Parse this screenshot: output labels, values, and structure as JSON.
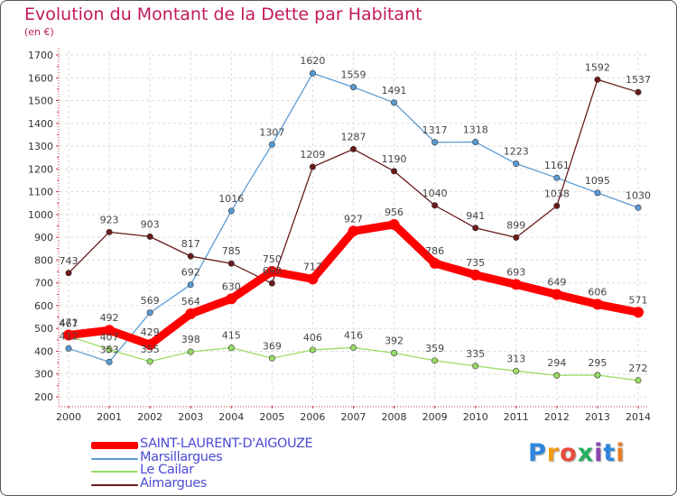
{
  "chart_data": {
    "type": "line",
    "title": "Evolution du Montant de la Dette par Habitant",
    "subtitle": "(en €)",
    "x": [
      "2000",
      "2001",
      "2002",
      "2003",
      "2004",
      "2005",
      "2006",
      "2007",
      "2008",
      "2009",
      "2010",
      "2011",
      "2012",
      "2013",
      "2014"
    ],
    "ylim": [
      200,
      1700
    ],
    "yticks": [
      200,
      300,
      400,
      500,
      600,
      700,
      800,
      900,
      1000,
      1100,
      1200,
      1300,
      1400,
      1500,
      1600,
      1700
    ],
    "grid": true,
    "legend_position": "bottom-left",
    "series": [
      {
        "name": "SAINT-LAURENT-D'AIGOUZE",
        "color": "#ff0000",
        "values": [
          471,
          492,
          429,
          564,
          630,
          750,
          717,
          927,
          956,
          786,
          735,
          693,
          649,
          606,
          571
        ]
      },
      {
        "name": "Marsillargues",
        "color": "#5a9bd5",
        "values": [
          412,
          353,
          569,
          692,
          1016,
          1307,
          1620,
          1559,
          1491,
          1317,
          1318,
          1223,
          1161,
          1095,
          1030
        ]
      },
      {
        "name": "Le Cailar",
        "color": "#99dd66",
        "values": [
          467,
          407,
          355,
          398,
          415,
          369,
          406,
          416,
          392,
          359,
          335,
          313,
          294,
          295,
          272
        ]
      },
      {
        "name": "Aimargues",
        "color": "#6b1a1a",
        "values": [
          743,
          923,
          903,
          817,
          785,
          698,
          1209,
          1287,
          1190,
          1040,
          941,
          899,
          1038,
          1592,
          1537
        ]
      }
    ]
  },
  "logo": {
    "letters": [
      "P",
      "r",
      "o",
      "x",
      "i",
      "t",
      "i"
    ],
    "colors": [
      "#2e86de",
      "#f39c12",
      "#e74c3c",
      "#27ae60",
      "#8e44ad",
      "#2e86de",
      "#e67e22"
    ]
  }
}
